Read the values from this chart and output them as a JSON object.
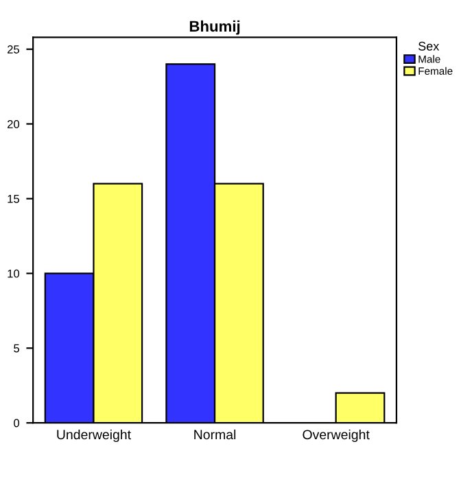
{
  "chart_data": {
    "type": "bar",
    "title": "Bhumij",
    "legend_title": "Sex",
    "categories": [
      "Underweight",
      "Normal",
      "Overweight"
    ],
    "series": [
      {
        "name": "Male",
        "color": "#3333ff",
        "values": [
          10,
          24,
          null
        ]
      },
      {
        "name": "Female",
        "color": "#ffff66",
        "values": [
          16,
          16,
          2
        ]
      }
    ],
    "ylim": [
      0,
      25.8
    ],
    "yticks": [
      0,
      5,
      10,
      15,
      20,
      25
    ],
    "grid": false,
    "legend": "top right"
  }
}
